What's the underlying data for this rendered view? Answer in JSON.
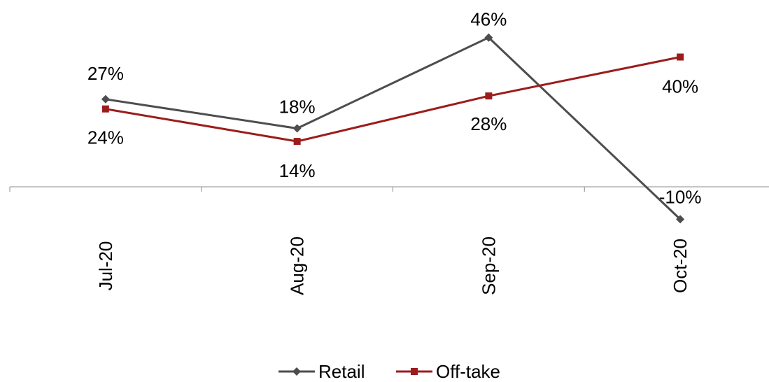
{
  "chart_data": {
    "type": "line",
    "categories": [
      "Jul-20",
      "Aug-20",
      "Sep-20",
      "Oct-20"
    ],
    "series": [
      {
        "name": "Retail",
        "values": [
          27,
          18,
          46,
          -10
        ],
        "labels": [
          "27%",
          "18%",
          "46%",
          "-10%"
        ],
        "color": "#4d4d4d",
        "marker": "diamond"
      },
      {
        "name": "Off-take",
        "values": [
          24,
          14,
          28,
          40
        ],
        "labels": [
          "24%",
          "14%",
          "28%",
          "40%"
        ],
        "color": "#9c1c1c",
        "marker": "square"
      }
    ],
    "ylim": [
      -20,
      50
    ],
    "grid": false,
    "y_axis_visible": false,
    "legend_position": "bottom-center"
  }
}
